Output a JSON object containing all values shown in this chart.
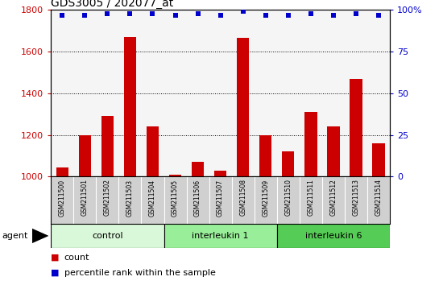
{
  "title": "GDS3005 / 202077_at",
  "samples": [
    "GSM211500",
    "GSM211501",
    "GSM211502",
    "GSM211503",
    "GSM211504",
    "GSM211505",
    "GSM211506",
    "GSM211507",
    "GSM211508",
    "GSM211509",
    "GSM211510",
    "GSM211511",
    "GSM211512",
    "GSM211513",
    "GSM211514"
  ],
  "counts": [
    1045,
    1200,
    1290,
    1670,
    1240,
    1010,
    1070,
    1030,
    1665,
    1200,
    1120,
    1310,
    1240,
    1470,
    1160
  ],
  "percentile": [
    97,
    97,
    98,
    98,
    98,
    97,
    98,
    97,
    99,
    97,
    97,
    98,
    97,
    98,
    97
  ],
  "groups": [
    {
      "name": "control",
      "start": 0,
      "end": 5,
      "color": "#d9f7d9"
    },
    {
      "name": "interleukin 1",
      "start": 5,
      "end": 10,
      "color": "#99ee99"
    },
    {
      "name": "interleukin 6",
      "start": 10,
      "end": 15,
      "color": "#55cc55"
    }
  ],
  "bar_color": "#cc0000",
  "dot_color": "#0000cc",
  "ylim_left": [
    1000,
    1800
  ],
  "ylim_right": [
    0,
    100
  ],
  "yticks_left": [
    1000,
    1200,
    1400,
    1600,
    1800
  ],
  "yticks_right": [
    0,
    25,
    50,
    75,
    100
  ],
  "tick_color_left": "#cc0000",
  "tick_color_right": "#0000cc",
  "bg_plot": "#f5f5f5",
  "xtick_bg": "#d0d0d0",
  "agent_label": "agent",
  "legend_count": "count",
  "legend_pct": "percentile rank within the sample"
}
